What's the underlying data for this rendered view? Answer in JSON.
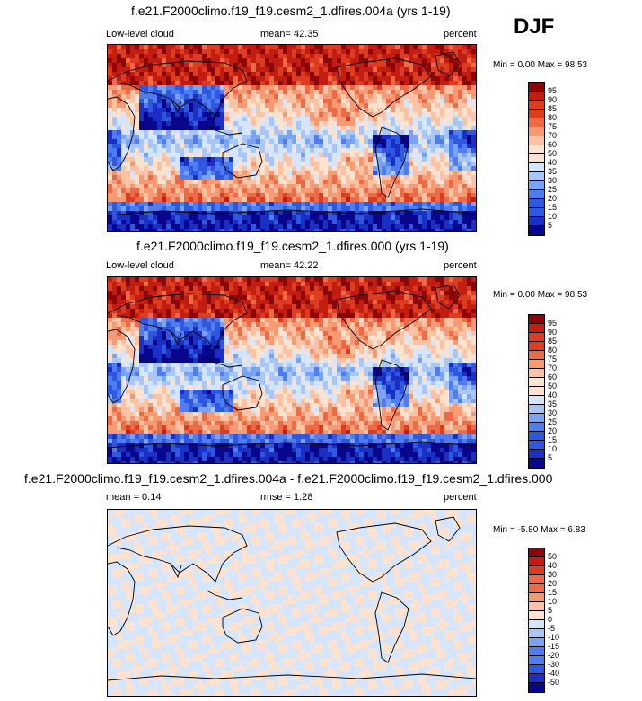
{
  "season": "DJF",
  "colors": {
    "levels12": [
      "#08068a",
      "#1a2fc4",
      "#2f58e0",
      "#4f7df0",
      "#7aa2f5",
      "#a9c6f9",
      "#d4e5fc",
      "#fde3cf",
      "#fbc2a4",
      "#f59a73",
      "#ec6b46",
      "#dc3c1f",
      "#c21d10",
      "#8b0707"
    ],
    "diff": [
      "#08068a",
      "#1a2fc4",
      "#2f58e0",
      "#4f7df0",
      "#7aa2f5",
      "#a9c6f9",
      "#d4e5fc",
      "#fde3cf",
      "#fbc2a4",
      "#f59a73",
      "#ec6b46",
      "#dc3c1f",
      "#c21d10",
      "#8b0707"
    ]
  },
  "panels": [
    {
      "title": "f.e21.F2000climo.f19_f19.cesm2_1.dfires.004a (yrs 1-19)",
      "left_label": "Low-level cloud",
      "mid_label": "mean=  42.35",
      "right_label": "percent",
      "minmax": "Min =   0.00 Max =  98.53",
      "kind": "cloud",
      "colorbar_labels": [
        "95",
        "90",
        "85",
        "80",
        "75",
        "70",
        "60",
        "50",
        "40",
        "35",
        "30",
        "25",
        "20",
        "15",
        "10",
        "5"
      ]
    },
    {
      "title": "f.e21.F2000climo.f19_f19.cesm2_1.dfires.000 (yrs 1-19)",
      "left_label": "Low-level cloud",
      "mid_label": "mean=  42.22",
      "right_label": "percent",
      "minmax": "Min =   0.00 Max =  98.53",
      "kind": "cloud",
      "colorbar_labels": [
        "95",
        "90",
        "85",
        "80",
        "75",
        "70",
        "60",
        "50",
        "40",
        "35",
        "30",
        "25",
        "20",
        "15",
        "10",
        "5"
      ]
    },
    {
      "title": "f.e21.F2000climo.f19_f19.cesm2_1.dfires.004a - f.e21.F2000climo.f19_f19.cesm2_1.dfires.000",
      "left_label": "mean =   0.14",
      "mid_label": "rmse =   1.28",
      "right_label": "percent",
      "minmax": "Min =  -5.80 Max =   6.83",
      "kind": "diff",
      "colorbar_labels": [
        "50",
        "40",
        "30",
        "20",
        "15",
        "10",
        "5",
        "0",
        "-5",
        "-10",
        "-15",
        "-20",
        "-30",
        "-40",
        "-50"
      ]
    }
  ]
}
